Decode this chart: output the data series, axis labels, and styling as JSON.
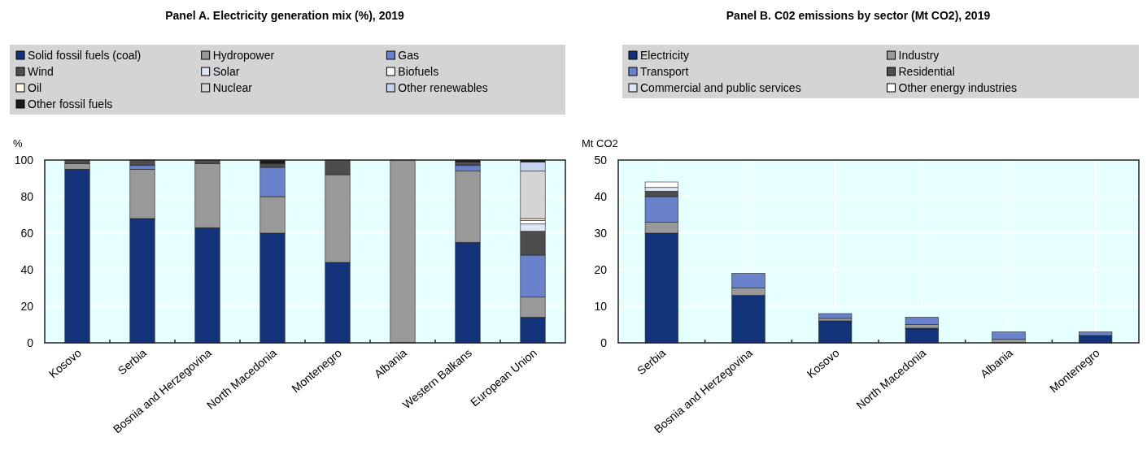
{
  "chart_data": [
    {
      "type": "bar",
      "stacked": true,
      "title": "Panel A. Electricity generation mix (%), 2019",
      "ylabel": "%",
      "categories": [
        "Kosovo",
        "Serbia",
        "Bosnia and Herzegovina",
        "North Macedonia",
        "Montenegro",
        "Albania",
        "Western Balkans",
        "European Union"
      ],
      "ylim": [
        0,
        100
      ],
      "yticks": [
        0,
        20,
        40,
        60,
        80,
        100
      ],
      "grid": true,
      "legend": "top",
      "series": [
        {
          "name": "Solid fossil fuels (coal)",
          "color": "#12337a",
          "values": [
            95,
            68,
            63,
            60,
            44,
            0,
            55,
            14
          ]
        },
        {
          "name": "Hydropower",
          "color": "#999999",
          "values": [
            3,
            27,
            35,
            20,
            48,
            100,
            39,
            11
          ]
        },
        {
          "name": "Gas",
          "color": "#6a82cc",
          "values": [
            0,
            2,
            0,
            16,
            0,
            0,
            3,
            23
          ]
        },
        {
          "name": "Wind",
          "color": "#4d4d4d",
          "values": [
            2,
            3,
            2,
            2,
            8,
            0,
            2,
            13
          ]
        },
        {
          "name": "Solar",
          "color": "#dce6f5",
          "values": [
            0,
            0,
            0,
            0,
            0,
            0,
            0,
            4
          ]
        },
        {
          "name": "Biofuels",
          "color": "#ffffff",
          "values": [
            0,
            0,
            0,
            0,
            0,
            0,
            0,
            2
          ]
        },
        {
          "name": "Oil",
          "color": "#fff8e6",
          "values": [
            0,
            0,
            0,
            0,
            0,
            0,
            0,
            1
          ]
        },
        {
          "name": "Nuclear",
          "color": "#d4d4d4",
          "values": [
            0,
            0,
            0,
            0,
            0,
            0,
            0,
            26
          ]
        },
        {
          "name": "Other renewables",
          "color": "#c6d4f0",
          "values": [
            0,
            0,
            0,
            0,
            0,
            0,
            0,
            5
          ]
        },
        {
          "name": "Other fossil fuels",
          "color": "#1a1a1a",
          "values": [
            0,
            0,
            0,
            2,
            0,
            0,
            1,
            1
          ]
        }
      ]
    },
    {
      "type": "bar",
      "stacked": true,
      "title": "Panel B. C02 emissions by sector (Mt CO2), 2019",
      "ylabel": "Mt CO2",
      "categories": [
        "Serbia",
        "Bosnia and Herzegovina",
        "Kosovo",
        "North Macedonia",
        "Albania",
        "Montenegro"
      ],
      "ylim": [
        0,
        50
      ],
      "yticks": [
        0,
        10,
        20,
        30,
        40,
        50
      ],
      "grid": true,
      "legend": "top",
      "series": [
        {
          "name": "Electricity",
          "color": "#12337a",
          "values": [
            30,
            13,
            6,
            4,
            null,
            2
          ]
        },
        {
          "name": "Industry",
          "color": "#999999",
          "values": [
            3,
            2,
            0.7,
            1,
            1,
            0
          ]
        },
        {
          "name": "Transport",
          "color": "#6a82cc",
          "values": [
            7,
            4,
            1.3,
            2,
            2,
            1
          ]
        },
        {
          "name": "Residential",
          "color": "#4d4d4d",
          "values": [
            1.5,
            0,
            0,
            0,
            0,
            0
          ]
        },
        {
          "name": "Commercial and public services",
          "color": "#dce6f5",
          "values": [
            1,
            0,
            0,
            0,
            0,
            0
          ]
        },
        {
          "name": "Other energy industries",
          "color": "#ffffff",
          "values": [
            1.5,
            0,
            0,
            0,
            0,
            0
          ]
        }
      ]
    }
  ]
}
